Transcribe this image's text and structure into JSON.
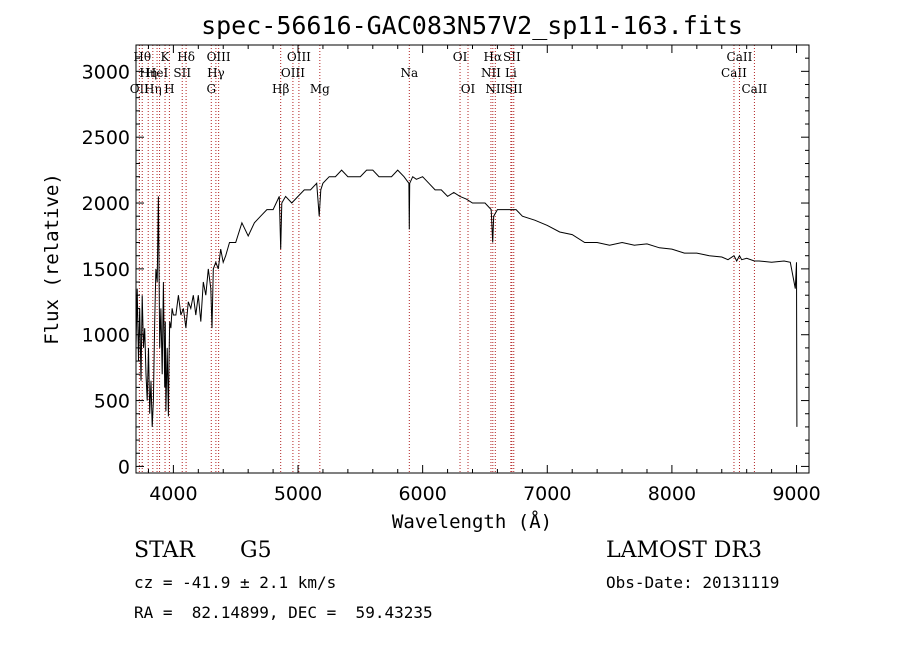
{
  "chart_data": {
    "type": "line",
    "title": "spec-56616-GAC083N57V2_sp11-163.fits",
    "xlabel": "Wavelength (Å)",
    "ylabel": "Flux (relative)",
    "xlim": [
      3700,
      9100
    ],
    "ylim": [
      -50,
      3200
    ],
    "xticks": [
      4000,
      5000,
      6000,
      7000,
      8000,
      9000
    ],
    "yticks": [
      0,
      500,
      1000,
      1500,
      2000,
      2500,
      3000
    ],
    "xtick_labels": [
      "4000",
      "5000",
      "6000",
      "7000",
      "8000",
      "9000"
    ],
    "ytick_labels": [
      "0",
      "500",
      "1000",
      "1500",
      "2000",
      "2500",
      "3000"
    ],
    "series": [
      {
        "name": "flux",
        "x": [
          3700,
          3710,
          3720,
          3730,
          3740,
          3750,
          3760,
          3770,
          3780,
          3790,
          3800,
          3810,
          3820,
          3830,
          3840,
          3850,
          3860,
          3870,
          3880,
          3890,
          3900,
          3910,
          3920,
          3930,
          3935,
          3940,
          3950,
          3960,
          3965,
          3970,
          3980,
          3990,
          4000,
          4020,
          4040,
          4060,
          4080,
          4100,
          4120,
          4140,
          4160,
          4180,
          4200,
          4220,
          4240,
          4260,
          4280,
          4300,
          4310,
          4320,
          4340,
          4360,
          4380,
          4400,
          4420,
          4450,
          4500,
          4550,
          4600,
          4650,
          4700,
          4750,
          4800,
          4850,
          4861,
          4870,
          4900,
          4950,
          5000,
          5050,
          5100,
          5150,
          5170,
          5183,
          5200,
          5250,
          5300,
          5350,
          5400,
          5450,
          5500,
          5550,
          5600,
          5650,
          5700,
          5750,
          5800,
          5850,
          5890,
          5893,
          5896,
          5920,
          5950,
          6000,
          6050,
          6100,
          6150,
          6200,
          6250,
          6300,
          6350,
          6400,
          6450,
          6500,
          6550,
          6562,
          6570,
          6600,
          6650,
          6700,
          6750,
          6800,
          6900,
          7000,
          7100,
          7200,
          7300,
          7400,
          7500,
          7600,
          7700,
          7800,
          7900,
          8000,
          8100,
          8200,
          8300,
          8400,
          8450,
          8498,
          8520,
          8542,
          8560,
          8600,
          8662,
          8700,
          8800,
          8900,
          8950,
          8990,
          9000,
          9003
        ],
        "values": [
          900,
          1350,
          800,
          1200,
          650,
          1300,
          900,
          1050,
          700,
          500,
          900,
          400,
          650,
          300,
          500,
          1100,
          1500,
          1400,
          2050,
          900,
          1200,
          700,
          1400,
          600,
          1100,
          420,
          900,
          380,
          800,
          1100,
          1050,
          1200,
          1150,
          1150,
          1300,
          1150,
          1200,
          1050,
          1250,
          1200,
          1300,
          1150,
          1300,
          1100,
          1400,
          1300,
          1500,
          1350,
          1050,
          1500,
          1550,
          1500,
          1650,
          1550,
          1600,
          1700,
          1700,
          1850,
          1750,
          1850,
          1900,
          1950,
          1950,
          2050,
          1650,
          2000,
          2050,
          2000,
          2050,
          2100,
          2100,
          2150,
          1900,
          2100,
          2150,
          2200,
          2200,
          2250,
          2200,
          2200,
          2200,
          2250,
          2250,
          2200,
          2200,
          2200,
          2250,
          2200,
          2150,
          1800,
          2150,
          2200,
          2180,
          2200,
          2150,
          2100,
          2100,
          2050,
          2080,
          2050,
          2030,
          2000,
          2000,
          2000,
          1950,
          1700,
          1900,
          1950,
          1950,
          1950,
          1950,
          1900,
          1870,
          1830,
          1780,
          1760,
          1700,
          1700,
          1680,
          1700,
          1680,
          1690,
          1660,
          1650,
          1620,
          1620,
          1600,
          1590,
          1570,
          1600,
          1560,
          1600,
          1570,
          1580,
          1560,
          1560,
          1550,
          1560,
          1550,
          1350,
          1550,
          300
        ]
      }
    ],
    "lines": [
      {
        "wl": 3727,
        "label": "OII",
        "row": 3
      },
      {
        "wl": 3750,
        "label": "Hθ",
        "row": 1
      },
      {
        "wl": 3798,
        "label": "Hη",
        "row": 2
      },
      {
        "wl": 3835,
        "label": "Hη",
        "row": 3
      },
      {
        "wl": 3869,
        "label": "HeI",
        "row": 2
      },
      {
        "wl": 3889,
        "label": "H8",
        "row": 0
      },
      {
        "wl": 3933,
        "label": "K",
        "row": 1
      },
      {
        "wl": 3968,
        "label": "H",
        "row": 3
      },
      {
        "wl": 4071,
        "label": "SII",
        "row": 2
      },
      {
        "wl": 4102,
        "label": "Hδ",
        "row": 1
      },
      {
        "wl": 4304,
        "label": "G",
        "row": 3
      },
      {
        "wl": 4341,
        "label": "Hγ",
        "row": 2
      },
      {
        "wl": 4363,
        "label": "OIII",
        "row": 1
      },
      {
        "wl": 4861,
        "label": "Hβ",
        "row": 3
      },
      {
        "wl": 4959,
        "label": "OIII",
        "row": 2
      },
      {
        "wl": 5007,
        "label": "OIII",
        "row": 1
      },
      {
        "wl": 5175,
        "label": "Mg",
        "row": 3
      },
      {
        "wl": 5893,
        "label": "Na",
        "row": 2
      },
      {
        "wl": 6300,
        "label": "OI",
        "row": 1
      },
      {
        "wl": 6364,
        "label": "OI",
        "row": 3
      },
      {
        "wl": 6548,
        "label": "NII",
        "row": 2
      },
      {
        "wl": 6563,
        "label": "Hα",
        "row": 1
      },
      {
        "wl": 6583,
        "label": "NII",
        "row": 3
      },
      {
        "wl": 6708,
        "label": "Li",
        "row": 2
      },
      {
        "wl": 6716,
        "label": "SII",
        "row": 1
      },
      {
        "wl": 6731,
        "label": "SII",
        "row": 3
      },
      {
        "wl": 8498,
        "label": "CaII",
        "row": 2
      },
      {
        "wl": 8542,
        "label": "CaII",
        "row": 1
      },
      {
        "wl": 8662,
        "label": "CaII",
        "row": 3
      }
    ],
    "grid": false,
    "legend": "none"
  },
  "info": {
    "object_type": "STAR",
    "subclass": "G5",
    "cz": "cz = -41.9 ± 2.1 km/s",
    "radec": "RA =  82.14899, DEC =  59.43235",
    "survey": "LAMOST DR3",
    "obs_date": "Obs-Date: 20131119"
  }
}
